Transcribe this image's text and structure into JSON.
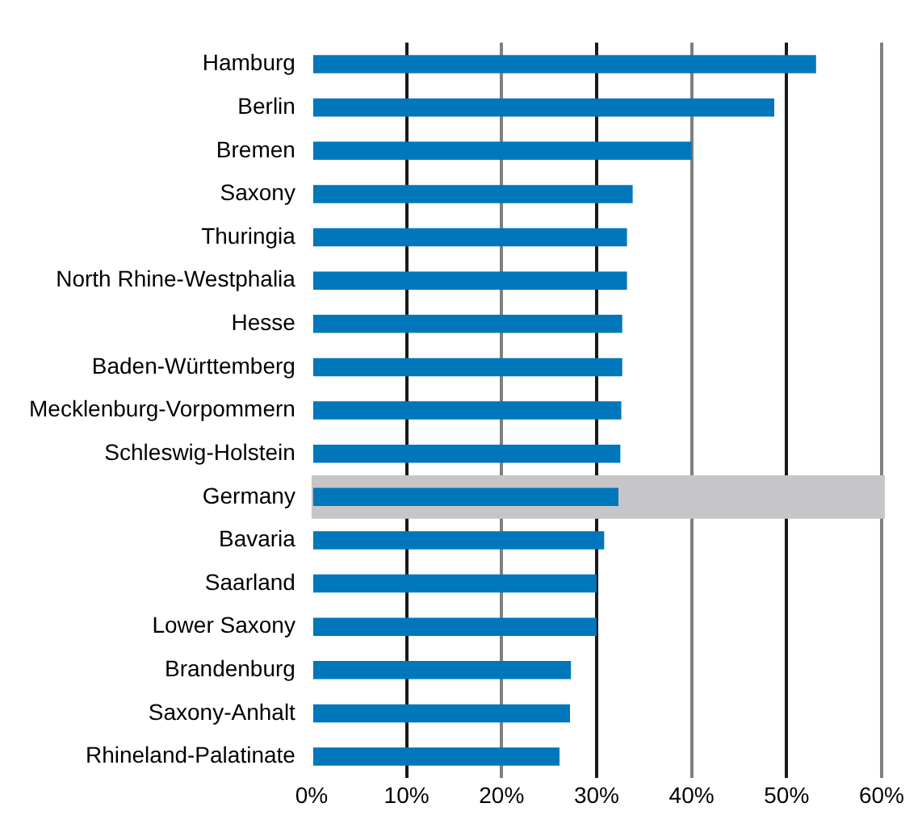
{
  "chart_data": {
    "type": "bar",
    "orientation": "horizontal",
    "categories": [
      "Hamburg",
      "Berlin",
      "Bremen",
      "Saxony",
      "Thuringia",
      "North Rhine-Westphalia",
      "Hesse",
      "Baden-Württemberg",
      "Mecklenburg-Vorpommern",
      "Schleswig-Holstein",
      "Germany",
      "Bavaria",
      "Saarland",
      "Lower Saxony",
      "Brandenburg",
      "Saxony-Anhalt",
      "Rhineland-Palatinate"
    ],
    "values": [
      53.1,
      48.7,
      40.0,
      33.8,
      33.2,
      33.2,
      32.7,
      32.7,
      32.6,
      32.5,
      32.3,
      30.8,
      30.0,
      30.0,
      27.3,
      27.2,
      26.1
    ],
    "color": "#0077bb",
    "xlim": [
      0,
      60
    ],
    "xticks": [
      {
        "value": 0,
        "label": "0%"
      },
      {
        "value": 10,
        "label": "10%"
      },
      {
        "value": 20,
        "label": "20%"
      },
      {
        "value": 30,
        "label": "30%"
      },
      {
        "value": 40,
        "label": "40%"
      },
      {
        "value": 50,
        "label": "50%"
      },
      {
        "value": 60,
        "label": "60%"
      }
    ],
    "grid": "x",
    "bands": [
      {
        "axis": "y",
        "from": "Germany",
        "to": "Germany",
        "color": "#c6c6c8"
      }
    ],
    "legend": false
  }
}
